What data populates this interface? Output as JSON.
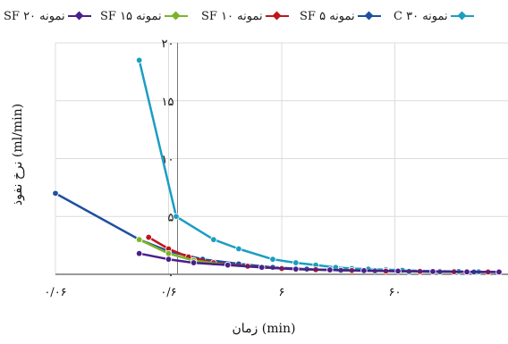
{
  "chart_data": {
    "type": "line",
    "xlabel": "(min) زمان",
    "ylabel": "(ml/min) نرخ نفوذ",
    "x_scale": "log",
    "x_ticks": [
      "۰/۰۶",
      "۰/۶",
      "۶",
      "۶۰"
    ],
    "y_ticks": [
      "۲۰",
      "۱۵",
      "۱۰",
      "۵",
      "۰"
    ],
    "ylim": [
      0,
      20
    ],
    "grid": true,
    "legend_position": "top",
    "series": [
      {
        "name": "نمونه ۳۰ C",
        "color": "#1a9ec2",
        "x": [
          0.33,
          0.7,
          1.5,
          2.5,
          5,
          8,
          12,
          18,
          25,
          35,
          50,
          70,
          100,
          150,
          220,
          330,
          500
        ],
        "y": [
          18.5,
          5.0,
          3.0,
          2.2,
          1.3,
          1.0,
          0.8,
          0.6,
          0.5,
          0.45,
          0.4,
          0.35,
          0.3,
          0.28,
          0.25,
          0.22,
          0.2
        ]
      },
      {
        "name": "نمونه ۵ SF",
        "color": "#1f4fa0",
        "x": [
          0.06,
          0.33,
          0.6,
          1.2,
          2.5,
          5,
          10,
          20,
          40,
          80,
          150,
          300,
          500
        ],
        "y": [
          7.0,
          3.0,
          2.0,
          1.3,
          0.9,
          0.6,
          0.45,
          0.35,
          0.3,
          0.25,
          0.22,
          0.2,
          0.2
        ]
      },
      {
        "name": "نمونه ۱۰ SF",
        "color": "#c0141c",
        "x": [
          0.4,
          0.6,
          0.9,
          1.5,
          3,
          6,
          12,
          25,
          50,
          100,
          200,
          400
        ],
        "y": [
          3.2,
          2.2,
          1.5,
          1.0,
          0.7,
          0.5,
          0.4,
          0.33,
          0.28,
          0.25,
          0.22,
          0.2
        ]
      },
      {
        "name": "نمونه ۱۵ SF",
        "color": "#7ab526",
        "x": [
          0.33,
          0.6,
          1.0,
          2,
          4,
          8,
          16,
          32,
          64,
          130,
          260,
          500
        ],
        "y": [
          3.0,
          1.8,
          1.2,
          0.8,
          0.6,
          0.45,
          0.38,
          0.32,
          0.28,
          0.24,
          0.21,
          0.2
        ]
      },
      {
        "name": "نمونه ۲۰ SF",
        "color": "#4a1f8c",
        "x": [
          0.33,
          0.6,
          1.0,
          2,
          4,
          8,
          16,
          32,
          64,
          130,
          260,
          500
        ],
        "y": [
          1.8,
          1.3,
          1.0,
          0.8,
          0.6,
          0.45,
          0.38,
          0.32,
          0.28,
          0.24,
          0.21,
          0.2
        ]
      }
    ]
  }
}
